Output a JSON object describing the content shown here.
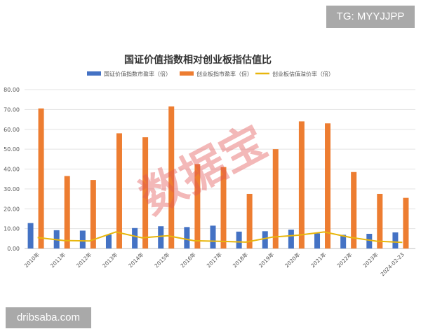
{
  "badges": {
    "top_right": "TG: MYYJJPP",
    "bottom_left": "dribsaba.com"
  },
  "watermark": "数据宝",
  "colors": {
    "series1": "#4472c4",
    "series2": "#ed7d31",
    "series3": "#e8b60c",
    "watermark": "#e25656",
    "grid": "#e3e3e3",
    "badge": "#a9a9a9"
  },
  "chart_data": {
    "type": "bar",
    "title": "国证价值指数相对创业板指估值比",
    "categories": [
      "2010年",
      "2011年",
      "2012年",
      "2013年",
      "2014年",
      "2015年",
      "2016年",
      "2017年",
      "2018年",
      "2019年",
      "2020年",
      "2021年",
      "2022年",
      "2023年",
      "2024-02-23"
    ],
    "series": [
      {
        "name": "国证价值指数市盈率（倍）",
        "type": "bar",
        "values": [
          12.8,
          9.2,
          9.0,
          7.0,
          10.3,
          11.2,
          10.8,
          11.5,
          8.5,
          8.7,
          9.5,
          7.6,
          6.9,
          7.4,
          8.1
        ]
      },
      {
        "name": "创业板指市盈率（倍）",
        "type": "bar",
        "values": [
          70.5,
          36.5,
          34.5,
          58.0,
          56.0,
          71.5,
          42.5,
          41.0,
          27.5,
          50.0,
          64.0,
          63.0,
          38.5,
          27.5,
          25.5
        ]
      },
      {
        "name": "创业板估值溢价率（倍）",
        "type": "line",
        "values": [
          5.5,
          4.0,
          3.8,
          8.3,
          5.4,
          6.4,
          3.9,
          3.6,
          3.2,
          5.7,
          6.7,
          8.3,
          5.6,
          3.7,
          3.1
        ]
      }
    ],
    "ylim": [
      0,
      80
    ],
    "yticks": [
      "0.00",
      "10.00",
      "20.00",
      "30.00",
      "40.00",
      "50.00",
      "60.00",
      "70.00",
      "80.00"
    ],
    "grid": true,
    "legend_position": "top-center"
  }
}
